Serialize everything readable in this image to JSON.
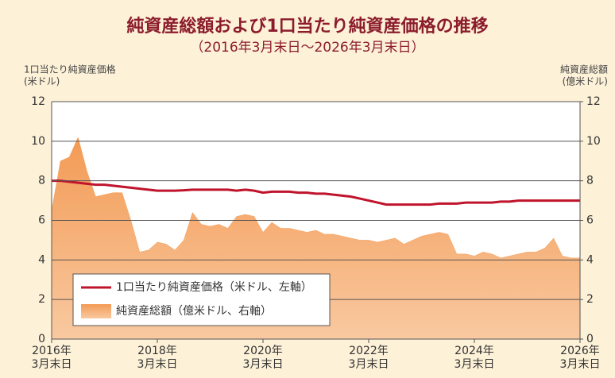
{
  "chart_data": {
    "type": "line_area",
    "title": "純資産総額および1口当たり純資産価格の推移",
    "subtitle": "（2016年3月末日～2026年3月末日）",
    "y_label": [
      "1口当たり純資産価格",
      "(米ドル)"
    ],
    "y2_label": [
      "純資産総額",
      "(億米ドル)"
    ],
    "x": [
      "2016-03",
      "2016-05",
      "2016-07",
      "2016-09",
      "2016-11",
      "2017-01",
      "2017-03",
      "2017-05",
      "2017-07",
      "2017-09",
      "2017-11",
      "2018-01",
      "2018-03",
      "2018-05",
      "2018-07",
      "2018-09",
      "2018-11",
      "2019-01",
      "2019-03",
      "2019-05",
      "2019-07",
      "2019-09",
      "2019-11",
      "2020-01",
      "2020-03",
      "2020-05",
      "2020-07",
      "2020-09",
      "2020-11",
      "2021-01",
      "2021-03",
      "2021-05",
      "2021-07",
      "2021-09",
      "2021-11",
      "2022-01",
      "2022-03",
      "2022-05",
      "2022-07",
      "2022-09",
      "2022-11",
      "2023-01",
      "2023-03",
      "2023-05",
      "2023-07",
      "2023-09",
      "2023-11",
      "2024-01",
      "2024-03",
      "2024-05",
      "2024-07",
      "2024-09",
      "2024-11",
      "2025-01",
      "2025-03",
      "2025-05",
      "2025-07",
      "2025-09",
      "2025-11",
      "2026-01",
      "2026-03"
    ],
    "xlim": [
      "2016-03",
      "2026-03"
    ],
    "xticks": [
      {
        "value": "2016-03",
        "label": [
          "2016年",
          "3月末日"
        ]
      },
      {
        "value": "2018-03",
        "label": [
          "2018年",
          "3月末日"
        ]
      },
      {
        "value": "2020-03",
        "label": [
          "2020年",
          "3月末日"
        ]
      },
      {
        "value": "2022-03",
        "label": [
          "2022年",
          "3月末日"
        ]
      },
      {
        "value": "2024-03",
        "label": [
          "2024年",
          "3月末日"
        ]
      },
      {
        "value": "2026-03",
        "label": [
          "2026年",
          "3月末日"
        ]
      }
    ],
    "ylim": [
      0,
      12
    ],
    "yticks": [
      0,
      2,
      4,
      6,
      8,
      10,
      12
    ],
    "y2lim": [
      0,
      12
    ],
    "y2ticks": [
      0,
      2,
      4,
      6,
      8,
      10,
      12
    ],
    "grid": true,
    "legend": "lower left",
    "series": [
      {
        "name": "1口当たり純資産価格（米ドル、左軸）",
        "kind": "line",
        "axis": "y",
        "color": "#c0142c",
        "values": [
          8.0,
          8.0,
          7.95,
          7.9,
          7.85,
          7.8,
          7.8,
          7.75,
          7.7,
          7.65,
          7.6,
          7.55,
          7.5,
          7.5,
          7.5,
          7.52,
          7.55,
          7.55,
          7.55,
          7.55,
          7.55,
          7.5,
          7.55,
          7.5,
          7.4,
          7.45,
          7.45,
          7.45,
          7.4,
          7.4,
          7.35,
          7.35,
          7.3,
          7.25,
          7.2,
          7.1,
          7.0,
          6.9,
          6.8,
          6.8,
          6.8,
          6.8,
          6.8,
          6.8,
          6.85,
          6.85,
          6.85,
          6.9,
          6.9,
          6.9,
          6.9,
          6.95,
          6.95,
          7.0,
          7.0,
          7.0,
          7.0,
          7.0,
          7.0,
          7.0,
          7.0
        ]
      },
      {
        "name": "純資産総額（億米ドル、右軸）",
        "kind": "area",
        "axis": "y2",
        "color": "#f4a15d",
        "values": [
          6.5,
          9.0,
          9.2,
          10.2,
          8.5,
          7.2,
          7.3,
          7.4,
          7.4,
          6.0,
          4.4,
          4.5,
          4.9,
          4.8,
          4.5,
          5.0,
          6.4,
          5.8,
          5.7,
          5.8,
          5.6,
          6.2,
          6.3,
          6.2,
          5.4,
          5.9,
          5.6,
          5.6,
          5.5,
          5.4,
          5.5,
          5.3,
          5.3,
          5.2,
          5.1,
          5.0,
          5.0,
          4.9,
          5.0,
          5.1,
          4.8,
          5.0,
          5.2,
          5.3,
          5.4,
          5.3,
          4.3,
          4.3,
          4.2,
          4.4,
          4.3,
          4.1,
          4.2,
          4.3,
          4.4,
          4.4,
          4.6,
          5.1,
          4.2,
          4.1,
          4.1
        ]
      }
    ]
  }
}
